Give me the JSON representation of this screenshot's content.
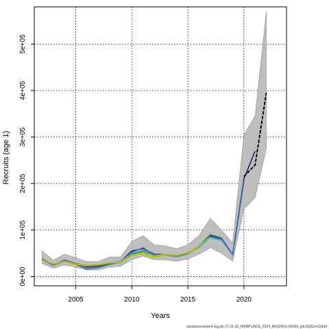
{
  "chart_data": {
    "type": "line",
    "xlabel": "Years",
    "ylabel": "Recruits (age 1)",
    "xlim": [
      2001.3,
      2023.8
    ],
    "ylim": [
      -20000,
      580000
    ],
    "x_ticks": [
      2005,
      2010,
      2015,
      2020
    ],
    "y_ticks": [
      0,
      100000,
      200000,
      300000,
      400000,
      500000
    ],
    "y_tick_labels": [
      "0e+00",
      "1e+05",
      "2e+05",
      "3e+05",
      "4e+05",
      "5e+05"
    ],
    "grid": true,
    "confidence_band": {
      "color": "#bebebe",
      "x": [
        2002,
        2003,
        2004,
        2005,
        2006,
        2007,
        2008,
        2009,
        2010,
        2011,
        2012,
        2013,
        2014,
        2015,
        2016,
        2017,
        2018,
        2019,
        2020,
        2021,
        2022
      ],
      "upper": [
        55000,
        35000,
        48000,
        40000,
        32000,
        32000,
        42000,
        42000,
        75000,
        88000,
        68000,
        66000,
        60000,
        68000,
        88000,
        125000,
        100000,
        72000,
        305000,
        345000,
        570000
      ],
      "lower": [
        28000,
        18000,
        25000,
        20000,
        14000,
        14000,
        20000,
        22000,
        36000,
        44000,
        36000,
        36000,
        33000,
        38000,
        48000,
        62000,
        50000,
        33000,
        145000,
        170000,
        275000
      ]
    },
    "series": [
      {
        "color": "#2b1d6b",
        "x": [
          2002,
          2003,
          2004,
          2005,
          2006,
          2007,
          2008,
          2009,
          2010,
          2011,
          2012,
          2013,
          2014,
          2015,
          2016,
          2017,
          2018,
          2019,
          2020,
          2021
        ],
        "values": [
          38000,
          25000,
          35000,
          28000,
          20000,
          22000,
          28000,
          32000,
          55000,
          60000,
          48000,
          47000,
          45000,
          50000,
          64000,
          88000,
          82000,
          47000,
          210000,
          270000
        ]
      },
      {
        "color": "#3a6fb5",
        "x": [
          2002,
          2003,
          2004,
          2005,
          2006,
          2007,
          2008,
          2009,
          2010,
          2011,
          2012,
          2013,
          2014,
          2015,
          2016,
          2017,
          2018,
          2019,
          2020
        ],
        "values": [
          36000,
          24000,
          33000,
          26000,
          16000,
          19000,
          26000,
          31000,
          52000,
          62000,
          46000,
          46000,
          44000,
          49000,
          65000,
          86000,
          80000,
          46000,
          205000
        ]
      },
      {
        "color": "#4da8da",
        "x": [
          2002,
          2003,
          2004,
          2005,
          2006,
          2007,
          2008,
          2009,
          2010,
          2011,
          2012,
          2013,
          2014,
          2015,
          2016,
          2017,
          2018,
          2019
        ],
        "values": [
          37000,
          25000,
          34000,
          27000,
          22000,
          24000,
          29000,
          33000,
          50000,
          56000,
          46000,
          46000,
          42000,
          48000,
          63000,
          83000,
          78000,
          45000
        ]
      },
      {
        "color": "#2e8b57",
        "x": [
          2002,
          2003,
          2004,
          2005,
          2006,
          2007,
          2008,
          2009,
          2010,
          2011,
          2012,
          2013,
          2014,
          2015,
          2016,
          2017,
          2018
        ],
        "values": [
          37000,
          26000,
          34000,
          28000,
          23000,
          24000,
          28000,
          30000,
          48000,
          54000,
          45000,
          47000,
          44000,
          50000,
          66000,
          90000,
          83000
        ]
      },
      {
        "color": "#9acd32",
        "x": [
          2002,
          2003,
          2004,
          2005,
          2006,
          2007,
          2008,
          2009,
          2010,
          2011,
          2012,
          2013,
          2014,
          2015,
          2016,
          2017
        ],
        "values": [
          36000,
          27000,
          33000,
          27000,
          24000,
          25000,
          30000,
          31000,
          46000,
          52000,
          44000,
          48000,
          46000,
          51000,
          66000,
          84000
        ]
      },
      {
        "color": "#c8b400",
        "x": [
          2002,
          2003,
          2004,
          2005,
          2006,
          2007,
          2008,
          2009,
          2010,
          2011,
          2012,
          2013,
          2014,
          2015,
          2016
        ],
        "values": [
          35000,
          27000,
          32000,
          26000,
          24000,
          25000,
          29000,
          30000,
          45000,
          50000,
          41000,
          47000,
          45000,
          51000,
          61000
        ]
      },
      {
        "color": "#000000",
        "dashed": true,
        "x": [
          2020,
          2021,
          2022
        ],
        "values": [
          215000,
          240000,
          395000
        ]
      }
    ]
  },
  "footer_text": "stockassessment.org,ple.27.21-32_WKBPLAICE_2024_NoQ2419,r18366, git:c9c81ec53a0d"
}
